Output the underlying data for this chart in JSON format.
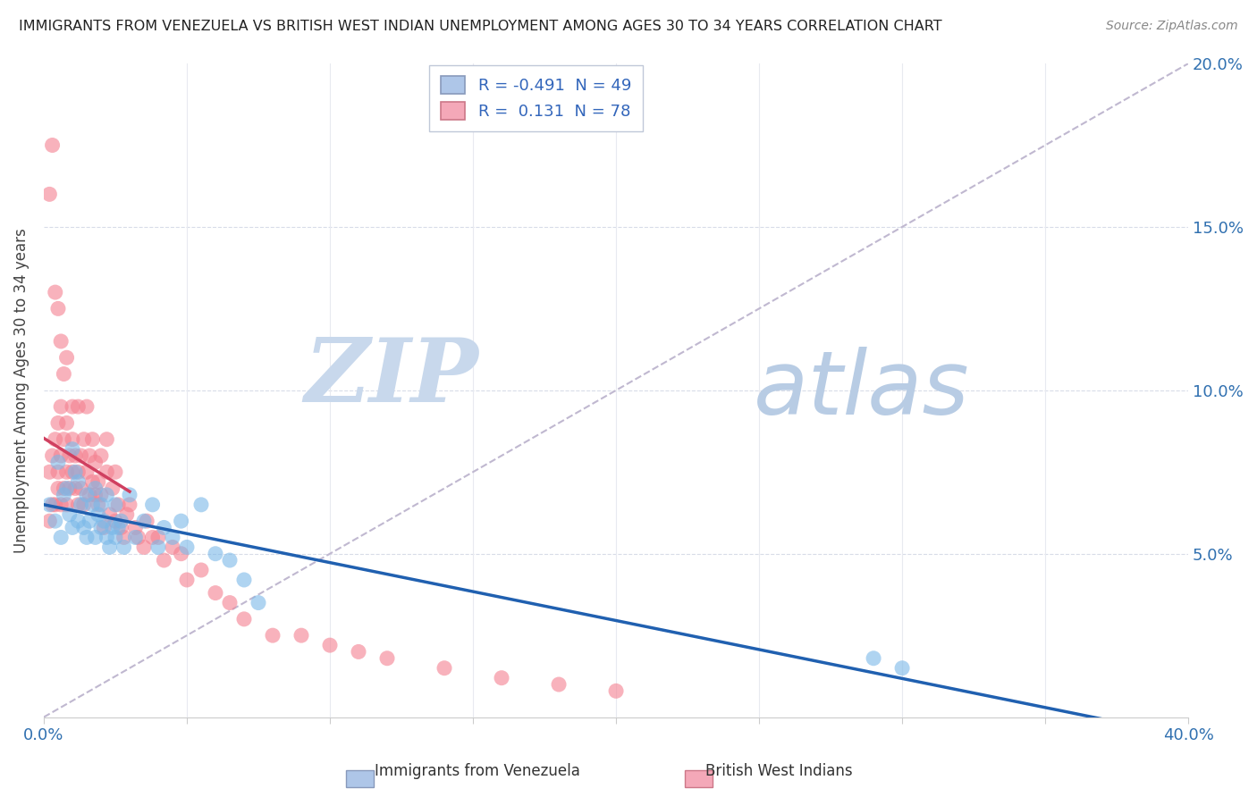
{
  "title": "IMMIGRANTS FROM VENEZUELA VS BRITISH WEST INDIAN UNEMPLOYMENT AMONG AGES 30 TO 34 YEARS CORRELATION CHART",
  "source": "Source: ZipAtlas.com",
  "ylabel": "Unemployment Among Ages 30 to 34 years",
  "xlim": [
    0.0,
    0.4
  ],
  "ylim": [
    0.0,
    0.2
  ],
  "legend_blue_label": "R = -0.491  N = 49",
  "legend_pink_label": "R =  0.131  N = 78",
  "legend_blue_color": "#aec6e8",
  "legend_pink_color": "#f4a8b8",
  "scatter_blue_color": "#7ab8e8",
  "scatter_pink_color": "#f48090",
  "trend_blue_color": "#2060b0",
  "trend_pink_color": "#d04060",
  "trend_gray_color": "#c0b8d0",
  "watermark_zip_color": "#c8d4e8",
  "watermark_atlas_color": "#b8cce0",
  "background_color": "#ffffff",
  "blue_x": [
    0.002,
    0.004,
    0.005,
    0.006,
    0.007,
    0.008,
    0.009,
    0.01,
    0.01,
    0.011,
    0.012,
    0.012,
    0.013,
    0.014,
    0.015,
    0.015,
    0.016,
    0.017,
    0.018,
    0.018,
    0.019,
    0.02,
    0.02,
    0.021,
    0.022,
    0.022,
    0.023,
    0.024,
    0.025,
    0.025,
    0.026,
    0.027,
    0.028,
    0.03,
    0.032,
    0.035,
    0.038,
    0.04,
    0.042,
    0.045,
    0.048,
    0.05,
    0.055,
    0.06,
    0.065,
    0.07,
    0.075,
    0.29,
    0.3
  ],
  "blue_y": [
    0.065,
    0.06,
    0.078,
    0.055,
    0.068,
    0.07,
    0.062,
    0.058,
    0.082,
    0.075,
    0.06,
    0.072,
    0.065,
    0.058,
    0.068,
    0.055,
    0.06,
    0.065,
    0.055,
    0.07,
    0.062,
    0.058,
    0.065,
    0.06,
    0.055,
    0.068,
    0.052,
    0.058,
    0.055,
    0.065,
    0.058,
    0.06,
    0.052,
    0.068,
    0.055,
    0.06,
    0.065,
    0.052,
    0.058,
    0.055,
    0.06,
    0.052,
    0.065,
    0.05,
    0.048,
    0.042,
    0.035,
    0.018,
    0.015
  ],
  "pink_x": [
    0.002,
    0.002,
    0.003,
    0.003,
    0.004,
    0.004,
    0.005,
    0.005,
    0.005,
    0.006,
    0.006,
    0.006,
    0.007,
    0.007,
    0.008,
    0.008,
    0.008,
    0.009,
    0.009,
    0.01,
    0.01,
    0.01,
    0.011,
    0.011,
    0.012,
    0.012,
    0.012,
    0.013,
    0.013,
    0.014,
    0.014,
    0.015,
    0.015,
    0.016,
    0.016,
    0.017,
    0.017,
    0.018,
    0.018,
    0.019,
    0.019,
    0.02,
    0.02,
    0.021,
    0.022,
    0.022,
    0.023,
    0.024,
    0.025,
    0.025,
    0.026,
    0.027,
    0.028,
    0.029,
    0.03,
    0.032,
    0.033,
    0.035,
    0.036,
    0.038,
    0.04,
    0.042,
    0.045,
    0.048,
    0.05,
    0.055,
    0.06,
    0.065,
    0.07,
    0.08,
    0.09,
    0.1,
    0.11,
    0.12,
    0.14,
    0.16,
    0.18,
    0.2
  ],
  "pink_y": [
    0.06,
    0.075,
    0.08,
    0.065,
    0.065,
    0.085,
    0.07,
    0.09,
    0.075,
    0.065,
    0.08,
    0.095,
    0.07,
    0.085,
    0.075,
    0.09,
    0.065,
    0.08,
    0.07,
    0.075,
    0.085,
    0.095,
    0.07,
    0.08,
    0.065,
    0.075,
    0.095,
    0.08,
    0.07,
    0.085,
    0.065,
    0.075,
    0.095,
    0.08,
    0.068,
    0.085,
    0.072,
    0.068,
    0.078,
    0.065,
    0.072,
    0.068,
    0.08,
    0.058,
    0.075,
    0.085,
    0.062,
    0.07,
    0.06,
    0.075,
    0.065,
    0.058,
    0.055,
    0.062,
    0.065,
    0.058,
    0.055,
    0.052,
    0.06,
    0.055,
    0.055,
    0.048,
    0.052,
    0.05,
    0.042,
    0.045,
    0.038,
    0.035,
    0.03,
    0.025,
    0.025,
    0.022,
    0.02,
    0.018,
    0.015,
    0.012,
    0.01,
    0.008
  ],
  "pink_high_x": [
    0.002,
    0.003,
    0.004,
    0.005,
    0.006,
    0.007,
    0.008
  ],
  "pink_high_y": [
    0.16,
    0.175,
    0.13,
    0.125,
    0.115,
    0.105,
    0.11
  ]
}
